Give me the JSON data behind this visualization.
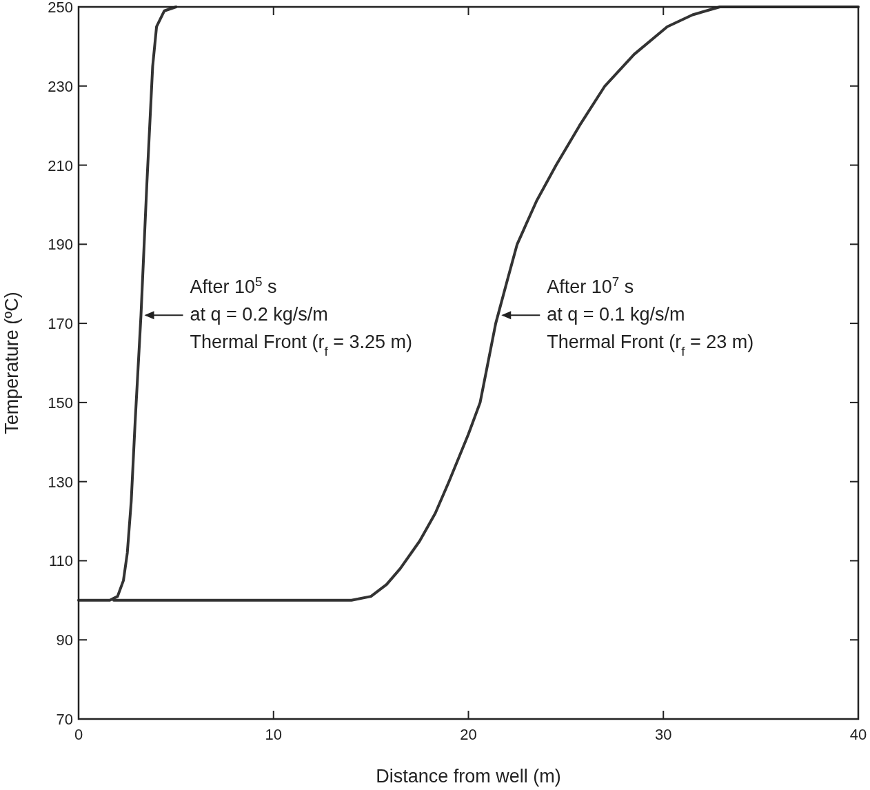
{
  "chart_data": {
    "type": "line",
    "xlabel": "Distance from well (m)",
    "ylabel": "Temperature (ºC)",
    "xlim": [
      0,
      40
    ],
    "ylim": [
      70,
      250
    ],
    "xticks": [
      0,
      10,
      20,
      30,
      40
    ],
    "yticks": [
      70,
      90,
      110,
      130,
      150,
      170,
      190,
      210,
      230,
      250
    ],
    "marker": "none",
    "line_style": "solid",
    "series": [
      {
        "color": "#333333",
        "x": [
          0,
          1.6,
          2.0,
          2.3,
          2.5,
          2.7,
          2.9,
          3.2,
          3.5,
          3.8,
          4.0,
          4.4,
          5.0
        ],
        "values": [
          100,
          100,
          101,
          105,
          112,
          125,
          145,
          172,
          205,
          235,
          245,
          249,
          250
        ]
      },
      {
        "color": "#333333",
        "x": [
          1.8,
          14,
          15,
          15.8,
          16.5,
          17.5,
          18.3,
          19,
          20,
          20.6,
          21,
          21.4,
          22,
          22.5,
          23.5,
          24.5,
          25.7,
          27,
          28.5,
          30.2,
          31.5,
          32.9,
          40
        ],
        "values": [
          100,
          100,
          101,
          104,
          108,
          115,
          122,
          130,
          142,
          150,
          160,
          170,
          181,
          190,
          201,
          210,
          220,
          230,
          238,
          245,
          248,
          250,
          250
        ]
      }
    ],
    "annotations": [
      "After 10$^{5}$ s\nat q = 0.2 kg/s/m\nThermal Front (r$_{f}$ = 3.25 m)",
      "After 10$^{7}$ s\nat q = 0.1 kg/s/m\nThermal Front (r$_{f}$ = 23 m)"
    ]
  }
}
